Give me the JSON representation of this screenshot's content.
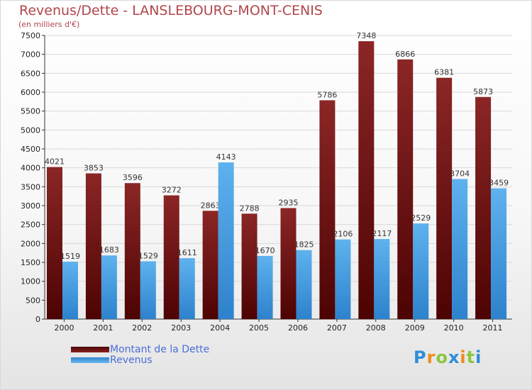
{
  "title": "Revenus/Dette - LANSLEBOURG-MONT-CENIS",
  "subtitle": "(en milliers d'€)",
  "logo": {
    "text": "Proxiti",
    "letters": [
      {
        "ch": "P",
        "color": "#2e8ed6"
      },
      {
        "ch": "r",
        "color": "#f08a1c"
      },
      {
        "ch": "o",
        "color": "#8cc63f"
      },
      {
        "ch": "x",
        "color": "#2e8ed6"
      },
      {
        "ch": "i",
        "color": "#f08a1c"
      },
      {
        "ch": "t",
        "color": "#8cc63f"
      },
      {
        "ch": "i",
        "color": "#2e8ed6"
      }
    ]
  },
  "chart_data": {
    "type": "bar",
    "categories": [
      "2000",
      "2001",
      "2002",
      "2003",
      "2004",
      "2005",
      "2006",
      "2007",
      "2008",
      "2009",
      "2010",
      "2011"
    ],
    "series": [
      {
        "name": "Montant de la Dette",
        "color": "#7a1717",
        "values": [
          4021,
          3853,
          3596,
          3272,
          2863,
          2788,
          2935,
          5786,
          7348,
          6866,
          6381,
          5873
        ]
      },
      {
        "name": "Revenus",
        "color": "#4ea4e6",
        "values": [
          1519,
          1683,
          1529,
          1611,
          4143,
          1670,
          1825,
          2106,
          2117,
          2529,
          3704,
          3459
        ]
      }
    ],
    "y_ticks": [
      0,
      500,
      1000,
      1500,
      2000,
      2500,
      3000,
      3500,
      4000,
      4500,
      5000,
      5500,
      6000,
      6500,
      7000,
      7500
    ],
    "ylim": [
      0,
      7500
    ],
    "grid": true,
    "legend_position": "bottom-left"
  }
}
